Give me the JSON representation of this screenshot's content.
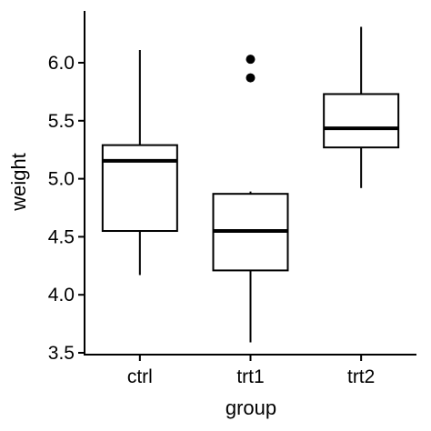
{
  "chart_data": {
    "type": "boxplot",
    "xlabel": "group",
    "ylabel": "weight",
    "ylim": [
      3.5,
      6.35
    ],
    "yticks": [
      "3.5",
      "4.0",
      "4.5",
      "5.0",
      "5.5",
      "6.0"
    ],
    "grid": false,
    "categories": [
      "ctrl",
      "trt1",
      "trt2"
    ],
    "boxes": [
      {
        "category": "ctrl",
        "min": 4.17,
        "q1": 4.55,
        "median": 5.155,
        "q3": 5.29,
        "max": 6.11,
        "outliers": []
      },
      {
        "category": "trt1",
        "min": 3.59,
        "q1": 4.21,
        "median": 4.55,
        "q3": 4.87,
        "max": 4.89,
        "outliers": [
          5.87,
          6.03
        ]
      },
      {
        "category": "trt2",
        "min": 4.92,
        "q1": 5.27,
        "median": 5.435,
        "q3": 5.73,
        "max": 6.31,
        "outliers": []
      }
    ]
  }
}
